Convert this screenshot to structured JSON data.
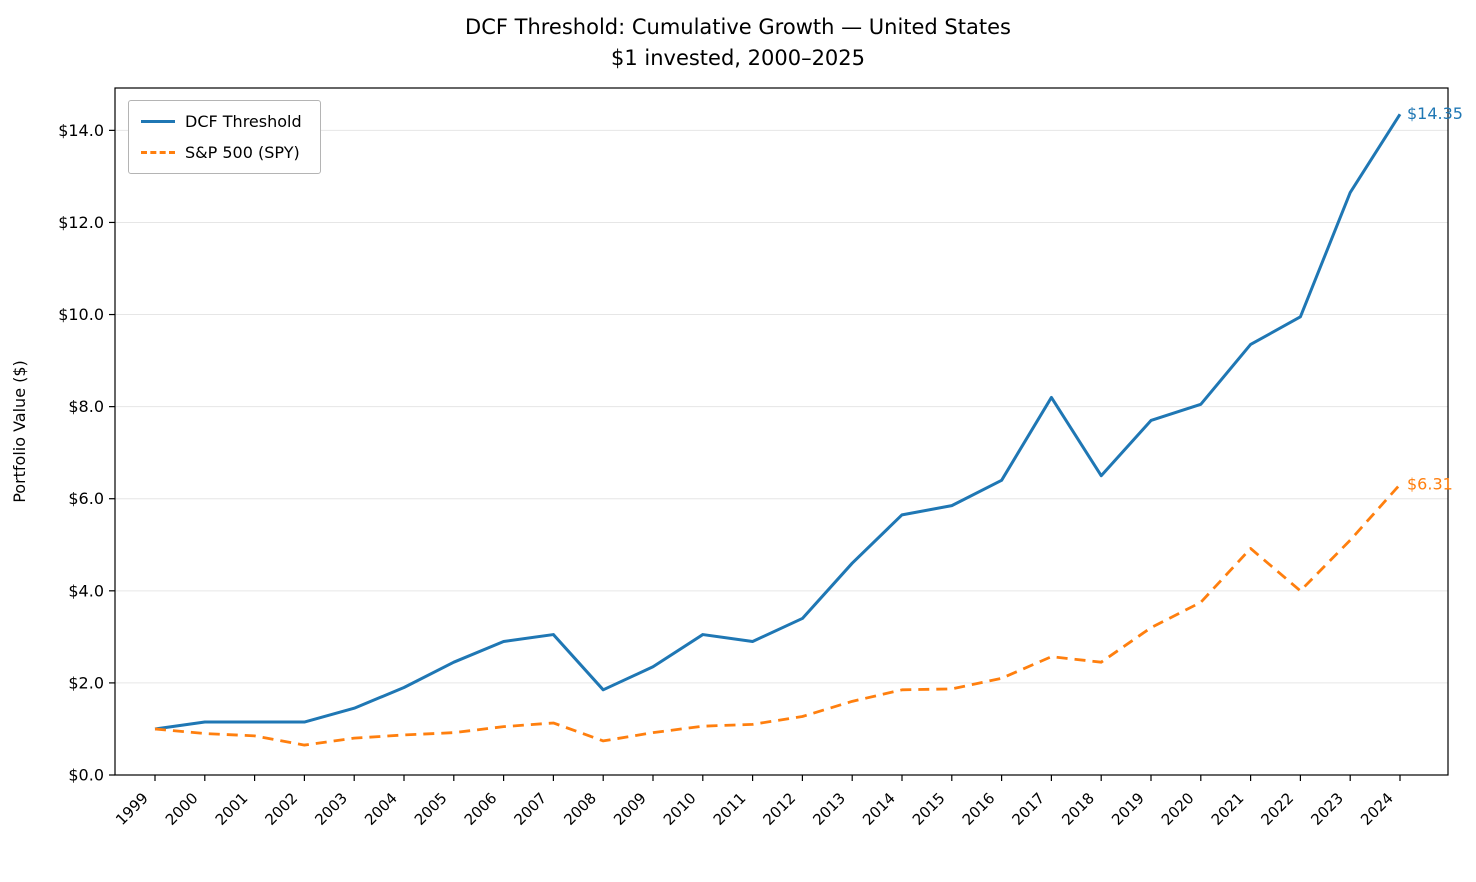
{
  "chart_data": {
    "type": "line",
    "title": "DCF Threshold: Cumulative Growth — United States",
    "subtitle": "$1 invested, 2000–2025",
    "ylabel": "Portfolio Value ($)",
    "xlabel": "",
    "x": [
      "1999",
      "2000",
      "2001",
      "2002",
      "2003",
      "2004",
      "2005",
      "2006",
      "2007",
      "2008",
      "2009",
      "2010",
      "2011",
      "2012",
      "2013",
      "2014",
      "2015",
      "2016",
      "2017",
      "2018",
      "2019",
      "2020",
      "2021",
      "2022",
      "2023",
      "2024"
    ],
    "series": [
      {
        "name": "DCF Threshold",
        "color": "#1f77b4",
        "style": "solid",
        "end_label": "$14.35",
        "values": [
          1.0,
          1.15,
          1.15,
          1.15,
          1.45,
          1.9,
          2.45,
          2.9,
          3.05,
          1.85,
          2.35,
          3.05,
          2.9,
          3.4,
          4.6,
          5.65,
          5.85,
          6.4,
          8.2,
          6.5,
          7.7,
          8.05,
          9.35,
          9.95,
          12.65,
          14.35
        ]
      },
      {
        "name": "S&P 500 (SPY)",
        "color": "#ff7f0e",
        "style": "dashed",
        "end_label": "$6.31",
        "values": [
          1.0,
          0.9,
          0.85,
          0.65,
          0.8,
          0.87,
          0.92,
          1.05,
          1.13,
          0.74,
          0.92,
          1.06,
          1.1,
          1.27,
          1.6,
          1.85,
          1.87,
          2.1,
          2.57,
          2.45,
          3.2,
          3.75,
          4.92,
          4.0,
          5.1,
          6.31
        ]
      }
    ],
    "ylim": [
      0,
      14.92
    ],
    "yticks": [
      0,
      2,
      4,
      6,
      8,
      10,
      12,
      14
    ],
    "ytick_labels": [
      "$0.0",
      "$2.0",
      "$4.0",
      "$6.0",
      "$8.0",
      "$10.0",
      "$12.0",
      "$14.0"
    ],
    "grid": "horizontal",
    "grid_color": "#e6e6e6",
    "axis_color": "#000000",
    "legend_position": "upper-left"
  }
}
